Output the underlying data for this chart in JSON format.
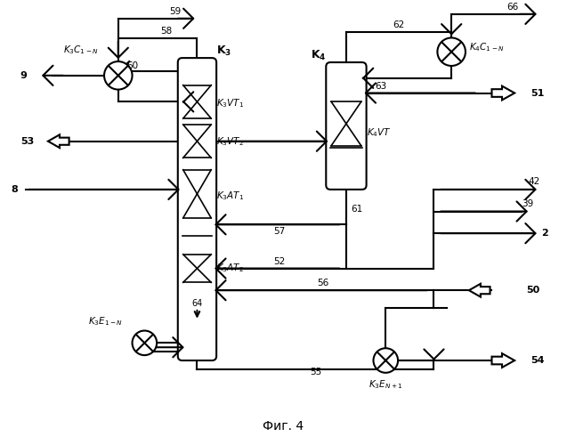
{
  "title": "Фиг. 4",
  "background_color": "#ffffff",
  "line_color": "#000000",
  "fig_width": 6.37,
  "fig_height": 5.0,
  "dpi": 100
}
